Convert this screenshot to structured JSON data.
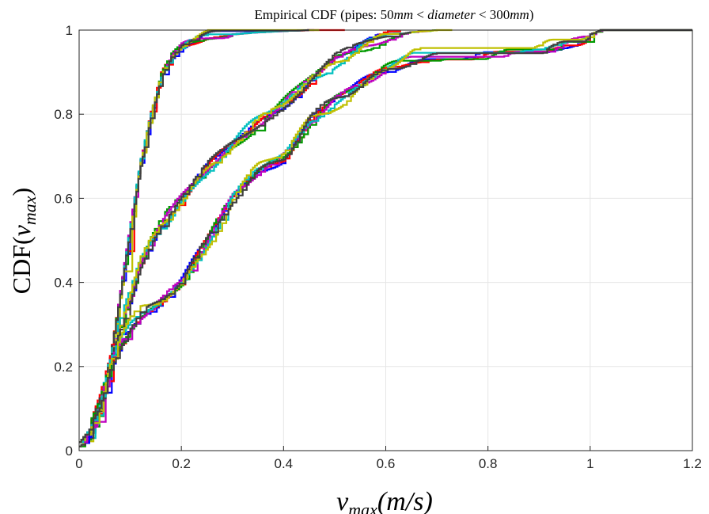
{
  "chart_data": {
    "type": "line",
    "title": {
      "prefix": "Empirical CDF (pipes: ",
      "value1": "50",
      "unit1": "mm",
      "lt": " < ",
      "var": "diameter",
      "value2": "300",
      "unit2": "mm",
      "suffix": ")"
    },
    "xlabel": {
      "base": "v",
      "sub": "max",
      "unit": "(m/s)"
    },
    "ylabel": {
      "base": "CDF(",
      "var": "v",
      "sub": "max",
      "close": ")"
    },
    "xlim": [
      0,
      1.2
    ],
    "ylim": [
      0,
      1
    ],
    "xticks": [
      0,
      0.2,
      0.4,
      0.6,
      0.8,
      1,
      1.2
    ],
    "yticks": [
      0,
      0.2,
      0.4,
      0.6,
      0.8,
      1
    ],
    "xtick_labels": [
      "0",
      "0.2",
      "0.4",
      "0.6",
      "0.8",
      "1",
      "1.2"
    ],
    "ytick_labels": [
      "0",
      "0.2",
      "0.4",
      "0.6",
      "0.8",
      "1"
    ],
    "grid": true,
    "colors": [
      "#0000ff",
      "#ff0000",
      "#009900",
      "#bf00bf",
      "#00bfbf",
      "#bfbf00",
      "#404040"
    ],
    "groups": [
      {
        "profile": [
          [
            0,
            0.01
          ],
          [
            0.02,
            0.03
          ],
          [
            0.04,
            0.09
          ],
          [
            0.06,
            0.22
          ],
          [
            0.08,
            0.38
          ],
          [
            0.1,
            0.54
          ],
          [
            0.12,
            0.69
          ],
          [
            0.14,
            0.8
          ],
          [
            0.16,
            0.89
          ],
          [
            0.18,
            0.935
          ],
          [
            0.2,
            0.96
          ],
          [
            0.25,
            0.983
          ],
          [
            0.3,
            0.99
          ],
          [
            0.35,
            0.995
          ],
          [
            0.4,
            0.998
          ],
          [
            0.45,
            1.0
          ],
          [
            0.52,
            1.0
          ]
        ],
        "series": [
          {
            "end": 0.46,
            "jitter": [
              0.005,
              0.008
            ]
          },
          {
            "end": 0.52,
            "jitter": [
              -0.004,
              0.006
            ]
          },
          {
            "end": 0.44,
            "jitter": [
              0.003,
              -0.007
            ]
          },
          {
            "end": 0.45,
            "jitter": [
              -0.006,
              0.004
            ]
          },
          {
            "end": 0.44,
            "jitter": [
              0.007,
              -0.005
            ]
          },
          {
            "end": 0.47,
            "jitter": [
              -0.008,
              0.01
            ]
          },
          {
            "end": 0.45,
            "jitter": [
              0.002,
              -0.012
            ]
          }
        ]
      },
      {
        "profile": [
          [
            0,
            0.02
          ],
          [
            0.02,
            0.05
          ],
          [
            0.04,
            0.12
          ],
          [
            0.06,
            0.22
          ],
          [
            0.08,
            0.3
          ],
          [
            0.1,
            0.37
          ],
          [
            0.12,
            0.45
          ],
          [
            0.14,
            0.5
          ],
          [
            0.16,
            0.54
          ],
          [
            0.2,
            0.6
          ],
          [
            0.25,
            0.67
          ],
          [
            0.3,
            0.73
          ],
          [
            0.35,
            0.78
          ],
          [
            0.4,
            0.83
          ],
          [
            0.45,
            0.88
          ],
          [
            0.5,
            0.93
          ],
          [
            0.55,
            0.96
          ],
          [
            0.6,
            0.985
          ],
          [
            0.65,
            0.995
          ],
          [
            0.7,
            1.0
          ],
          [
            0.73,
            1.0
          ]
        ],
        "series": [
          {
            "end": 0.67,
            "jitter": [
              0.006,
              0.01
            ]
          },
          {
            "end": 0.63,
            "jitter": [
              -0.006,
              -0.008
            ]
          },
          {
            "end": 0.7,
            "jitter": [
              0.004,
              -0.012
            ]
          },
          {
            "end": 0.68,
            "jitter": [
              -0.004,
              0.007
            ]
          },
          {
            "end": 0.66,
            "jitter": [
              0.008,
              0.012
            ]
          },
          {
            "end": 0.73,
            "jitter": [
              -0.009,
              -0.004
            ]
          },
          {
            "end": 0.65,
            "jitter": [
              0.002,
              -0.015
            ]
          }
        ]
      },
      {
        "profile": [
          [
            0,
            0.02
          ],
          [
            0.02,
            0.05
          ],
          [
            0.04,
            0.1
          ],
          [
            0.06,
            0.2
          ],
          [
            0.08,
            0.25
          ],
          [
            0.1,
            0.29
          ],
          [
            0.12,
            0.32
          ],
          [
            0.15,
            0.35
          ],
          [
            0.2,
            0.41
          ],
          [
            0.25,
            0.5
          ],
          [
            0.3,
            0.6
          ],
          [
            0.35,
            0.66
          ],
          [
            0.4,
            0.7
          ],
          [
            0.45,
            0.79
          ],
          [
            0.5,
            0.84
          ],
          [
            0.55,
            0.87
          ],
          [
            0.6,
            0.9
          ],
          [
            0.65,
            0.93
          ],
          [
            0.7,
            0.935
          ],
          [
            0.75,
            0.935
          ],
          [
            0.8,
            0.935
          ],
          [
            0.85,
            0.935
          ],
          [
            0.9,
            0.935
          ],
          [
            0.92,
            0.95
          ],
          [
            0.95,
            0.97
          ],
          [
            0.98,
            0.98
          ],
          [
            1.02,
            1.0
          ],
          [
            1.2,
            1.0
          ]
        ],
        "series": [
          {
            "end": 1.2,
            "jitter": [
              0.006,
              0.008
            ]
          },
          {
            "end": 1.2,
            "jitter": [
              -0.005,
              -0.01
            ]
          },
          {
            "end": 1.2,
            "jitter": [
              0.008,
              0.012
            ]
          },
          {
            "end": 1.2,
            "jitter": [
              -0.008,
              -0.006
            ]
          },
          {
            "end": 1.2,
            "jitter": [
              0.004,
              0.015
            ]
          },
          {
            "end": 1.2,
            "jitter": [
              -0.01,
              -0.02
            ]
          },
          {
            "end": 1.2,
            "jitter": [
              0.01,
              0.0
            ]
          }
        ]
      }
    ]
  }
}
